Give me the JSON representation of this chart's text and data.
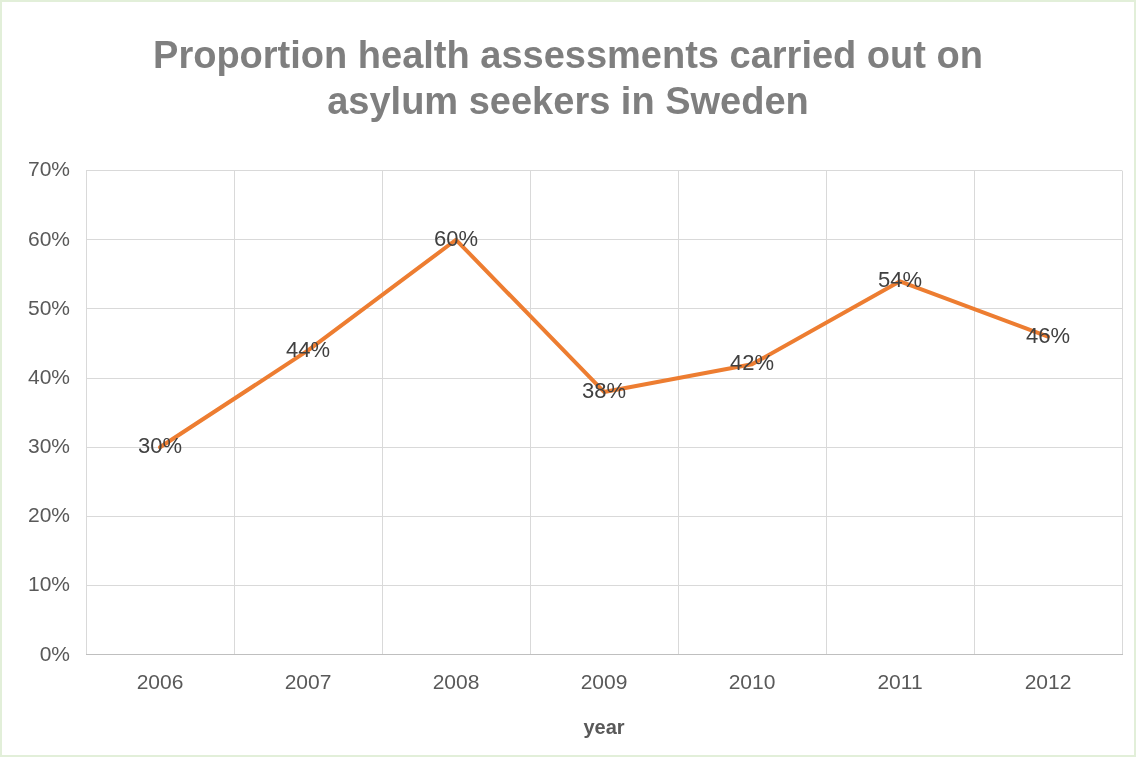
{
  "chart_data": {
    "type": "line",
    "title": "Proportion health assessments carried out on asylum seekers in Sweden",
    "xlabel": "year",
    "categories": [
      "2006",
      "2007",
      "2008",
      "2009",
      "2010",
      "2011",
      "2012"
    ],
    "series": [
      {
        "color": "#ed7d31",
        "values": [
          30,
          44,
          60,
          38,
          42,
          54,
          46
        ]
      }
    ],
    "value_labels": [
      "30%",
      "44%",
      "60%",
      "38%",
      "42%",
      "54%",
      "46%"
    ],
    "ylim": [
      0,
      70
    ],
    "yticks": [
      {
        "value": 0,
        "label": "0%"
      },
      {
        "value": 10,
        "label": "10%"
      },
      {
        "value": 20,
        "label": "20%"
      },
      {
        "value": 30,
        "label": "30%"
      },
      {
        "value": 40,
        "label": "40%"
      },
      {
        "value": 50,
        "label": "50%"
      },
      {
        "value": 60,
        "label": "60%"
      },
      {
        "value": 70,
        "label": "70%"
      }
    ],
    "grid": true,
    "legend": false,
    "marker": "none",
    "line_style": "solid"
  }
}
